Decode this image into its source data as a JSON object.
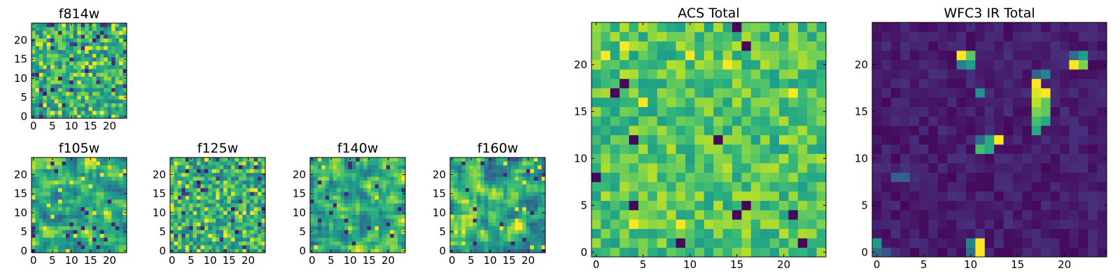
{
  "chart_data": [
    {
      "id": "f814w",
      "type": "heatmap",
      "title": "f814w",
      "colormap": "viridis",
      "grid_size": [
        25,
        25
      ],
      "xlim": [
        -0.5,
        24.5
      ],
      "ylim": [
        -0.5,
        24.5
      ],
      "xticks": [
        0,
        5,
        10,
        15,
        20
      ],
      "yticks": [
        0,
        5,
        10,
        15,
        20
      ],
      "xticklabels": [
        "0",
        "5",
        "10",
        "15",
        "20"
      ],
      "yticklabels": [
        "0",
        "5",
        "10",
        "15",
        "20"
      ],
      "pattern": "noise",
      "value_range": [
        0,
        1
      ],
      "seed": 11
    },
    {
      "id": "f105w",
      "type": "heatmap",
      "title": "f105w",
      "colormap": "viridis",
      "grid_size": [
        25,
        25
      ],
      "xlim": [
        -0.5,
        24.5
      ],
      "ylim": [
        -0.5,
        24.5
      ],
      "xticks": [
        0,
        5,
        10,
        15,
        20
      ],
      "yticks": [
        0,
        5,
        10,
        15,
        20
      ],
      "xticklabels": [
        "0",
        "5",
        "10",
        "15",
        "20"
      ],
      "yticklabels": [
        "0",
        "5",
        "10",
        "15",
        "20"
      ],
      "pattern": "smooth-noise",
      "value_range": [
        0,
        1
      ],
      "seed": 23
    },
    {
      "id": "f125w",
      "type": "heatmap",
      "title": "f125w",
      "colormap": "viridis",
      "grid_size": [
        25,
        25
      ],
      "xlim": [
        -0.5,
        24.5
      ],
      "ylim": [
        -0.5,
        24.5
      ],
      "xticks": [
        0,
        5,
        10,
        15,
        20
      ],
      "yticks": [
        0,
        5,
        10,
        15,
        20
      ],
      "xticklabels": [
        "0",
        "5",
        "10",
        "15",
        "20"
      ],
      "yticklabels": [
        "0",
        "5",
        "10",
        "15",
        "20"
      ],
      "pattern": "noise",
      "value_range": [
        0,
        1
      ],
      "seed": 37
    },
    {
      "id": "f140w",
      "type": "heatmap",
      "title": "f140w",
      "colormap": "viridis",
      "grid_size": [
        25,
        25
      ],
      "xlim": [
        -0.5,
        24.5
      ],
      "ylim": [
        -0.5,
        24.5
      ],
      "xticks": [
        0,
        5,
        10,
        15,
        20
      ],
      "yticks": [
        0,
        5,
        10,
        15,
        20
      ],
      "xticklabels": [
        "0",
        "5",
        "10",
        "15",
        "20"
      ],
      "yticklabels": [
        "0",
        "5",
        "10",
        "15",
        "20"
      ],
      "pattern": "smooth-noise",
      "value_range": [
        0,
        1
      ],
      "seed": 41
    },
    {
      "id": "f160w",
      "type": "heatmap",
      "title": "f160w",
      "colormap": "viridis",
      "grid_size": [
        25,
        25
      ],
      "xlim": [
        -0.5,
        24.5
      ],
      "ylim": [
        -0.5,
        24.5
      ],
      "xticks": [
        0,
        5,
        10,
        15,
        20
      ],
      "yticks": [
        0,
        5,
        10,
        15,
        20
      ],
      "xticklabels": [
        "0",
        "5",
        "10",
        "15",
        "20"
      ],
      "yticklabels": [
        "0",
        "5",
        "10",
        "15",
        "20"
      ],
      "pattern": "smooth-noise",
      "value_range": [
        0,
        1
      ],
      "seed": 53
    },
    {
      "id": "acs_total",
      "type": "heatmap",
      "title": "ACS Total",
      "colormap": "viridis",
      "grid_size": [
        25,
        25
      ],
      "xlim": [
        -0.5,
        24.5
      ],
      "ylim": [
        -0.5,
        24.5
      ],
      "xticks": [
        0,
        5,
        10,
        15,
        20
      ],
      "yticks": [
        0,
        5,
        10,
        15,
        20
      ],
      "xticklabels": [
        "0",
        "5",
        "10",
        "15",
        "20"
      ],
      "yticklabels": [
        "0",
        "5",
        "10",
        "15",
        "20"
      ],
      "pattern": "noise-high",
      "value_range": [
        0,
        1
      ],
      "seed": 67,
      "notable_low_pixels": [
        [
          15,
          24
        ],
        [
          16,
          22
        ],
        [
          3,
          18
        ],
        [
          2,
          17
        ],
        [
          4,
          12
        ],
        [
          13,
          12
        ],
        [
          0,
          8
        ],
        [
          4,
          5
        ],
        [
          16,
          5
        ],
        [
          15,
          4
        ],
        [
          21,
          4
        ],
        [
          9,
          1
        ],
        [
          22,
          1
        ]
      ],
      "notable_high_pixels": [
        [
          3,
          22
        ],
        [
          1,
          21
        ],
        [
          14,
          20
        ],
        [
          10,
          21
        ],
        [
          5,
          16
        ],
        [
          21,
          17
        ],
        [
          9,
          3
        ],
        [
          4,
          3
        ]
      ]
    },
    {
      "id": "wfc3_ir_total",
      "type": "heatmap",
      "title": "WFC3 IR Total",
      "colormap": "viridis",
      "grid_size": [
        25,
        25
      ],
      "xlim": [
        -0.5,
        24.5
      ],
      "ylim": [
        -0.5,
        24.5
      ],
      "xticks": [
        0,
        5,
        10,
        15,
        20
      ],
      "yticks": [
        0,
        5,
        10,
        15,
        20
      ],
      "xticklabels": [
        "0",
        "5",
        "10",
        "15",
        "20"
      ],
      "yticklabels": [
        "0",
        "5",
        "10",
        "15",
        "20"
      ],
      "pattern": "dark-with-sources",
      "value_range": [
        0,
        1
      ],
      "seed": 79,
      "bright_pixels": [
        {
          "x": 9,
          "y": 21,
          "v": 1.0
        },
        {
          "x": 10,
          "y": 21,
          "v": 0.75
        },
        {
          "x": 9,
          "y": 20,
          "v": 0.45
        },
        {
          "x": 10,
          "y": 20,
          "v": 0.55
        },
        {
          "x": 21,
          "y": 20,
          "v": 1.0
        },
        {
          "x": 22,
          "y": 20,
          "v": 0.8
        },
        {
          "x": 22,
          "y": 21,
          "v": 0.55
        },
        {
          "x": 21,
          "y": 21,
          "v": 0.35
        },
        {
          "x": 17,
          "y": 18,
          "v": 1.0
        },
        {
          "x": 17,
          "y": 17,
          "v": 0.95
        },
        {
          "x": 18,
          "y": 17,
          "v": 1.0
        },
        {
          "x": 17,
          "y": 16,
          "v": 0.9
        },
        {
          "x": 18,
          "y": 16,
          "v": 0.75
        },
        {
          "x": 17,
          "y": 15,
          "v": 0.8
        },
        {
          "x": 18,
          "y": 15,
          "v": 0.75
        },
        {
          "x": 17,
          "y": 14,
          "v": 0.7
        },
        {
          "x": 18,
          "y": 14,
          "v": 0.6
        },
        {
          "x": 17,
          "y": 13,
          "v": 0.6
        },
        {
          "x": 18,
          "y": 19,
          "v": 0.45
        },
        {
          "x": 17,
          "y": 19,
          "v": 0.3
        },
        {
          "x": 12,
          "y": 12,
          "v": 0.6
        },
        {
          "x": 13,
          "y": 12,
          "v": 1.0
        },
        {
          "x": 11,
          "y": 11,
          "v": 0.7
        },
        {
          "x": 12,
          "y": 11,
          "v": 0.6
        },
        {
          "x": 11,
          "y": 12,
          "v": 0.35
        },
        {
          "x": 11,
          "y": 17,
          "v": 0.5
        },
        {
          "x": 10,
          "y": 1,
          "v": 0.45
        },
        {
          "x": 11,
          "y": 1,
          "v": 1.0
        },
        {
          "x": 11,
          "y": 0,
          "v": 1.0
        },
        {
          "x": 10,
          "y": 0,
          "v": 0.35
        },
        {
          "x": 0,
          "y": 1,
          "v": 0.55
        },
        {
          "x": 0,
          "y": 0,
          "v": 0.35
        },
        {
          "x": 1,
          "y": 0,
          "v": 0.25
        },
        {
          "x": 2,
          "y": 8,
          "v": 0.3
        },
        {
          "x": 3,
          "y": 8,
          "v": 0.3
        }
      ]
    }
  ]
}
